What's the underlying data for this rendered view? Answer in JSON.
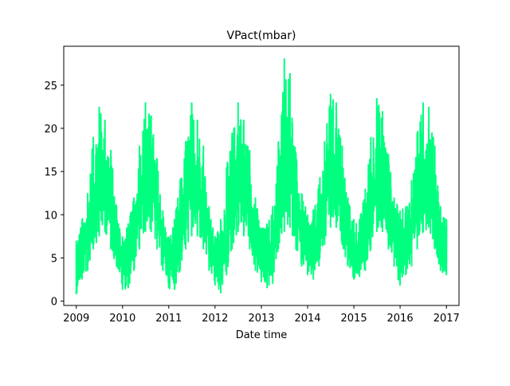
{
  "chart_data": {
    "type": "line",
    "title": "VPact(mbar)",
    "xlabel": "Date time",
    "ylabel": "",
    "x_ticks": [
      "2009",
      "2010",
      "2011",
      "2012",
      "2013",
      "2014",
      "2015",
      "2016",
      "2017"
    ],
    "y_ticks": [
      "0",
      "5",
      "10",
      "15",
      "20",
      "25"
    ],
    "xlim": [
      "2008-09-24",
      "2017-04-10"
    ],
    "ylim": [
      -0.5,
      29.5
    ],
    "grid": false,
    "legend": "none",
    "series": [
      {
        "color": "#00ff7f",
        "x": [
          "2009-01-01",
          "2009-02-15",
          "2009-04-01",
          "2009-05-15",
          "2009-07-01",
          "2009-08-15",
          "2009-10-01",
          "2009-11-15",
          "2010-01-01",
          "2010-02-15",
          "2010-04-01",
          "2010-05-15",
          "2010-07-01",
          "2010-08-15",
          "2010-10-01",
          "2010-11-15",
          "2011-01-01",
          "2011-02-15",
          "2011-04-01",
          "2011-05-15",
          "2011-07-01",
          "2011-08-15",
          "2011-10-01",
          "2011-11-15",
          "2012-01-01",
          "2012-02-15",
          "2012-04-01",
          "2012-05-15",
          "2012-07-01",
          "2012-08-15",
          "2012-10-01",
          "2012-11-15",
          "2013-01-01",
          "2013-02-15",
          "2013-04-01",
          "2013-05-15",
          "2013-07-01",
          "2013-08-15",
          "2013-10-01",
          "2013-11-15",
          "2014-01-01",
          "2014-02-15",
          "2014-04-01",
          "2014-05-15",
          "2014-07-01",
          "2014-08-15",
          "2014-10-01",
          "2014-11-15",
          "2015-01-01",
          "2015-02-15",
          "2015-04-01",
          "2015-05-15",
          "2015-07-01",
          "2015-08-15",
          "2015-10-01",
          "2015-11-15",
          "2016-01-01",
          "2016-02-15",
          "2016-04-01",
          "2016-05-15",
          "2016-07-01",
          "2016-08-15",
          "2016-10-01",
          "2016-11-15",
          "2017-01-01"
        ],
        "mean": [
          4.5,
          5.5,
          7.0,
          10.5,
          14.0,
          14.0,
          11.0,
          7.5,
          4.5,
          5.0,
          7.0,
          10.5,
          15.0,
          14.5,
          11.0,
          7.0,
          4.0,
          4.5,
          7.5,
          10.5,
          14.0,
          14.0,
          11.5,
          7.0,
          4.5,
          4.0,
          7.0,
          11.0,
          14.5,
          14.0,
          11.0,
          7.5,
          5.0,
          4.5,
          6.0,
          10.5,
          15.0,
          15.5,
          11.5,
          8.0,
          6.0,
          6.0,
          8.0,
          11.5,
          15.0,
          14.5,
          11.5,
          8.0,
          5.5,
          5.5,
          7.0,
          10.5,
          14.5,
          14.0,
          11.0,
          8.0,
          5.5,
          6.0,
          7.5,
          11.0,
          14.5,
          14.5,
          11.0,
          7.5,
          4.5
        ],
        "min": [
          0.8,
          2.5,
          3.5,
          6.0,
          7.5,
          8.0,
          6.0,
          4.0,
          1.3,
          1.5,
          3.5,
          6.0,
          8.0,
          8.0,
          6.0,
          3.5,
          1.5,
          1.3,
          3.5,
          6.0,
          7.5,
          7.5,
          6.0,
          3.5,
          1.8,
          0.9,
          3.0,
          6.0,
          8.0,
          7.5,
          6.0,
          3.5,
          2.2,
          1.5,
          2.0,
          6.0,
          8.0,
          8.5,
          6.0,
          4.0,
          3.0,
          2.5,
          4.0,
          6.5,
          8.5,
          8.5,
          6.5,
          4.0,
          2.5,
          2.8,
          3.5,
          6.0,
          8.0,
          8.0,
          6.0,
          4.0,
          1.8,
          3.0,
          4.0,
          6.0,
          8.0,
          8.5,
          6.0,
          3.5,
          3.0
        ],
        "max": [
          7.0,
          9.5,
          12.5,
          19.0,
          22.5,
          21.0,
          17.5,
          11.0,
          7.5,
          9.0,
          12.0,
          18.0,
          23.0,
          21.5,
          16.5,
          10.5,
          7.5,
          9.5,
          14.0,
          18.5,
          23.0,
          21.0,
          18.0,
          11.0,
          7.5,
          9.5,
          15.5,
          19.5,
          23.0,
          21.0,
          17.5,
          12.0,
          8.5,
          9.0,
          11.0,
          18.5,
          28.1,
          26.4,
          17.0,
          12.5,
          10.0,
          10.5,
          13.5,
          18.5,
          24.0,
          23.0,
          18.0,
          12.0,
          9.5,
          9.5,
          13.0,
          19.0,
          23.5,
          22.0,
          17.0,
          12.0,
          10.5,
          11.0,
          14.0,
          19.5,
          23.0,
          22.5,
          18.0,
          11.0,
          9.5
        ]
      }
    ]
  }
}
